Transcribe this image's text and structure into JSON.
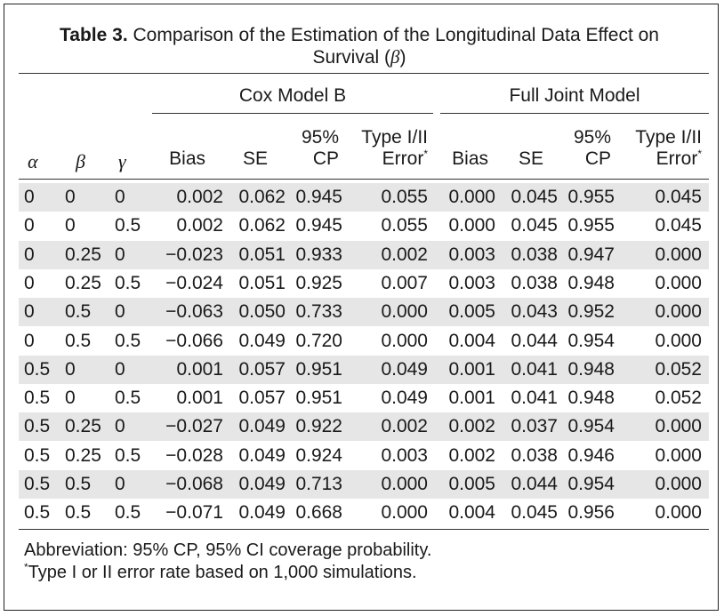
{
  "caption": {
    "label": "Table 3.",
    "line1": "Comparison of the Estimation of the Longitudinal Data Effect on",
    "line2_prefix": "Survival (",
    "line2_symbol": "β",
    "line2_suffix": ")"
  },
  "groups": {
    "cox": "Cox Model B",
    "joint": "Full Joint Model"
  },
  "columns": {
    "alpha": "α",
    "beta": "β",
    "gamma": "γ",
    "bias": "Bias",
    "se": "SE",
    "cp_top": "95%",
    "cp_bottom": "CP",
    "err_top": "Type I/II",
    "err_bottom": "Error",
    "err_mark": "*"
  },
  "rows": [
    [
      "0",
      "0",
      "0",
      "0.002",
      "0.062",
      "0.945",
      "0.055",
      "0.000",
      "0.045",
      "0.955",
      "0.045"
    ],
    [
      "0",
      "0",
      "0.5",
      "0.002",
      "0.062",
      "0.945",
      "0.055",
      "0.000",
      "0.045",
      "0.955",
      "0.045"
    ],
    [
      "0",
      "0.25",
      "0",
      "−0.023",
      "0.051",
      "0.933",
      "0.002",
      "0.003",
      "0.038",
      "0.947",
      "0.000"
    ],
    [
      "0",
      "0.25",
      "0.5",
      "−0.024",
      "0.051",
      "0.925",
      "0.007",
      "0.003",
      "0.038",
      "0.948",
      "0.000"
    ],
    [
      "0",
      "0.5",
      "0",
      "−0.063",
      "0.050",
      "0.733",
      "0.000",
      "0.005",
      "0.043",
      "0.952",
      "0.000"
    ],
    [
      "0",
      "0.5",
      "0.5",
      "−0.066",
      "0.049",
      "0.720",
      "0.000",
      "0.004",
      "0.044",
      "0.954",
      "0.000"
    ],
    [
      "0.5",
      "0",
      "0",
      "0.001",
      "0.057",
      "0.951",
      "0.049",
      "0.001",
      "0.041",
      "0.948",
      "0.052"
    ],
    [
      "0.5",
      "0",
      "0.5",
      "0.001",
      "0.057",
      "0.951",
      "0.049",
      "0.001",
      "0.041",
      "0.948",
      "0.052"
    ],
    [
      "0.5",
      "0.25",
      "0",
      "−0.027",
      "0.049",
      "0.922",
      "0.002",
      "0.002",
      "0.037",
      "0.954",
      "0.000"
    ],
    [
      "0.5",
      "0.25",
      "0.5",
      "−0.028",
      "0.049",
      "0.924",
      "0.003",
      "0.002",
      "0.038",
      "0.946",
      "0.000"
    ],
    [
      "0.5",
      "0.5",
      "0",
      "−0.068",
      "0.049",
      "0.713",
      "0.000",
      "0.005",
      "0.044",
      "0.954",
      "0.000"
    ],
    [
      "0.5",
      "0.5",
      "0.5",
      "−0.071",
      "0.049",
      "0.668",
      "0.000",
      "0.004",
      "0.045",
      "0.956",
      "0.000"
    ]
  ],
  "footnotes": {
    "abbrev": "Abbreviation: 95% CP, 95% CI coverage probability.",
    "mark": "*",
    "note": "Type I or II error rate based on 1,000 simulations."
  }
}
